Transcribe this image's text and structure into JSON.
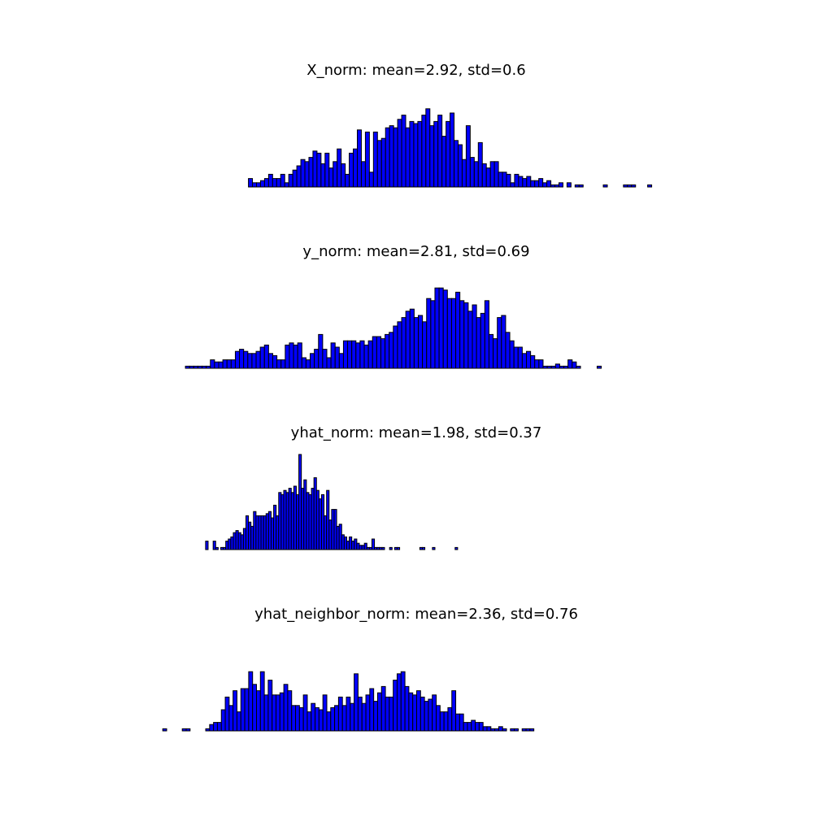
{
  "chart_data": [
    {
      "type": "histogram",
      "title": "X_norm: mean=2.92, std=0.6",
      "color": "#0000ff",
      "edgecolor": "#000000",
      "xlim": [
        0.335,
        5.335
      ],
      "ylim": [
        0,
        50
      ],
      "bins": [
        1.5,
        1.532,
        1.564,
        1.596,
        1.628,
        1.66,
        1.692,
        1.724,
        1.756,
        1.788,
        1.82,
        1.852,
        1.884,
        1.916,
        1.948,
        1.98,
        2.012,
        2.044,
        2.076,
        2.108,
        2.14,
        2.172,
        2.204,
        2.236,
        2.268,
        2.3,
        2.332,
        2.364,
        2.396,
        2.428,
        2.46,
        2.492,
        2.524,
        2.556,
        2.588,
        2.62,
        2.652,
        2.684,
        2.716,
        2.748,
        2.78,
        2.812,
        2.844,
        2.876,
        2.908,
        2.94,
        2.972,
        3.004,
        3.036,
        3.068,
        3.1,
        3.132,
        3.164,
        3.196,
        3.228,
        3.26,
        3.292,
        3.324,
        3.356,
        3.388,
        3.42,
        3.452,
        3.484,
        3.516,
        3.548,
        3.58,
        3.612,
        3.644,
        3.676,
        3.708,
        3.74,
        3.772,
        3.804,
        3.836,
        3.868,
        3.9,
        3.932,
        3.964,
        3.996,
        4.028,
        4.06,
        4.092,
        4.124,
        4.156,
        4.188,
        4.22,
        4.252,
        4.284,
        4.316,
        4.348,
        4.38,
        4.412,
        4.444,
        4.476,
        4.508,
        4.54,
        4.572,
        4.604,
        4.636,
        4.668,
        4.7
      ],
      "values": [
        4,
        2,
        2,
        3,
        4,
        6,
        4,
        4,
        6,
        2,
        6,
        8,
        10,
        13,
        12,
        14,
        17,
        16,
        11,
        16,
        9,
        12,
        18,
        11,
        6,
        16,
        18,
        27,
        12,
        26,
        7,
        26,
        22,
        23,
        28,
        29,
        28,
        32,
        34,
        28,
        31,
        30,
        31,
        34,
        37,
        29,
        31,
        34,
        24,
        31,
        35,
        22,
        20,
        13,
        29,
        14,
        12,
        21,
        11,
        9,
        12,
        12,
        7,
        7,
        6,
        2,
        6,
        5,
        4,
        5,
        3,
        3,
        4,
        2,
        3,
        1,
        1,
        2,
        0,
        2,
        0,
        1,
        1,
        0,
        0,
        0,
        0,
        0,
        1,
        0,
        0,
        0,
        0,
        1,
        1,
        1,
        0,
        0,
        0,
        1
      ]
    },
    {
      "type": "histogram",
      "title": "y_norm: mean=2.81, std=0.69",
      "color": "#0000ff",
      "edgecolor": "#000000",
      "xlim": [
        0.335,
        5.335
      ],
      "ylim": [
        0,
        50
      ],
      "bins": [
        1,
        1.033,
        1.066,
        1.099,
        1.132,
        1.165,
        1.198,
        1.231,
        1.264,
        1.297,
        1.33,
        1.363,
        1.396,
        1.429,
        1.462,
        1.495,
        1.528,
        1.561,
        1.594,
        1.627,
        1.66,
        1.693,
        1.726,
        1.759,
        1.792,
        1.825,
        1.858,
        1.891,
        1.924,
        1.957,
        1.99,
        2.023,
        2.056,
        2.089,
        2.122,
        2.155,
        2.188,
        2.221,
        2.254,
        2.287,
        2.32,
        2.353,
        2.386,
        2.419,
        2.452,
        2.485,
        2.518,
        2.551,
        2.584,
        2.617,
        2.65,
        2.683,
        2.716,
        2.749,
        2.782,
        2.815,
        2.848,
        2.881,
        2.914,
        2.947,
        2.98,
        3.013,
        3.046,
        3.079,
        3.112,
        3.145,
        3.178,
        3.211,
        3.244,
        3.277,
        3.31,
        3.343,
        3.376,
        3.409,
        3.442,
        3.475,
        3.508,
        3.541,
        3.574,
        3.607,
        3.64,
        3.673,
        3.706,
        3.739,
        3.772,
        3.805,
        3.838,
        3.871,
        3.904,
        3.937,
        3.97,
        4.003,
        4.036,
        4.069,
        4.102,
        4.135,
        4.168,
        4.201,
        4.234,
        4.267,
        4.3
      ],
      "values": [
        1,
        1,
        1,
        1,
        1,
        1,
        4,
        3,
        3,
        4,
        4,
        4,
        8,
        9,
        8,
        7,
        7,
        8,
        10,
        11,
        7,
        6,
        4,
        4,
        11,
        12,
        11,
        12,
        5,
        4,
        7,
        9,
        16,
        9,
        5,
        12,
        10,
        7,
        13,
        13,
        13,
        12,
        13,
        11,
        13,
        15,
        15,
        14,
        16,
        17,
        20,
        22,
        24,
        27,
        28,
        24,
        25,
        22,
        33,
        32,
        38,
        38,
        37,
        33,
        33,
        36,
        32,
        31,
        27,
        30,
        24,
        26,
        32,
        16,
        14,
        24,
        25,
        17,
        13,
        10,
        10,
        7,
        8,
        6,
        4,
        4,
        1,
        1,
        1,
        2,
        1,
        1,
        4,
        3,
        1,
        0,
        0,
        0,
        0,
        1
      ]
    },
    {
      "type": "histogram",
      "title": "yhat_norm: mean=1.98, std=0.37",
      "color": "#0000ff",
      "edgecolor": "#000000",
      "xlim": [
        0.335,
        5.335
      ],
      "ylim": [
        0,
        50
      ],
      "bins": [
        1.16,
        1.18,
        1.2,
        1.22,
        1.24,
        1.26,
        1.28,
        1.3,
        1.32,
        1.34,
        1.36,
        1.38,
        1.4,
        1.42,
        1.44,
        1.46,
        1.48,
        1.5,
        1.52,
        1.54,
        1.56,
        1.58,
        1.6,
        1.62,
        1.64,
        1.66,
        1.68,
        1.7,
        1.72,
        1.74,
        1.76,
        1.78,
        1.8,
        1.82,
        1.84,
        1.86,
        1.88,
        1.9,
        1.92,
        1.94,
        1.96,
        1.98,
        2,
        2.02,
        2.04,
        2.06,
        2.08,
        2.1,
        2.12,
        2.14,
        2.16,
        2.18,
        2.2,
        2.22,
        2.24,
        2.26,
        2.28,
        2.3,
        2.32,
        2.34,
        2.36,
        2.38,
        2.4,
        2.42,
        2.44,
        2.46,
        2.48,
        2.5,
        2.52,
        2.54,
        2.56,
        2.58,
        2.6,
        2.62,
        2.64,
        2.66,
        2.68,
        2.7,
        2.72,
        2.74,
        2.76,
        2.78,
        2.8,
        2.82,
        2.84,
        2.86,
        2.88,
        2.9,
        2.92,
        2.94,
        2.96,
        2.98,
        3,
        3.02,
        3.04,
        3.06,
        3.08,
        3.1,
        3.12,
        3.14,
        3.16
      ],
      "values": [
        4,
        0,
        0,
        4,
        1,
        0,
        1,
        1,
        4,
        5,
        6,
        8,
        9,
        8,
        7,
        10,
        16,
        13,
        11,
        18,
        16,
        16,
        16,
        16,
        17,
        18,
        15,
        21,
        16,
        27,
        26,
        28,
        27,
        29,
        27,
        30,
        26,
        45,
        29,
        33,
        27,
        26,
        29,
        34,
        28,
        24,
        26,
        16,
        28,
        14,
        19,
        19,
        11,
        12,
        7,
        6,
        4,
        6,
        4,
        5,
        3,
        2,
        2,
        3,
        1,
        1,
        5,
        1,
        1,
        1,
        1,
        0,
        0,
        1,
        0,
        1,
        1,
        0,
        0,
        0,
        0,
        0,
        0,
        0,
        0,
        1,
        1,
        0,
        0,
        0,
        1,
        0,
        0,
        0,
        0,
        0,
        0,
        0,
        0,
        1
      ]
    },
    {
      "type": "histogram",
      "title": "yhat_neighbor_norm: mean=2.36, std=0.76",
      "color": "#0000ff",
      "edgecolor": "#000000",
      "xlim": [
        0.335,
        5.335
      ],
      "ylim": [
        0,
        50
      ],
      "bins": [
        0.82,
        0.851,
        0.882,
        0.913,
        0.944,
        0.975,
        1.006,
        1.037,
        1.068,
        1.099,
        1.13,
        1.161,
        1.192,
        1.223,
        1.254,
        1.285,
        1.316,
        1.347,
        1.378,
        1.409,
        1.44,
        1.471,
        1.502,
        1.533,
        1.564,
        1.595,
        1.626,
        1.657,
        1.688,
        1.719,
        1.75,
        1.781,
        1.812,
        1.843,
        1.874,
        1.905,
        1.936,
        1.967,
        1.998,
        2.029,
        2.06,
        2.091,
        2.122,
        2.153,
        2.184,
        2.215,
        2.246,
        2.277,
        2.308,
        2.339,
        2.37,
        2.401,
        2.432,
        2.463,
        2.494,
        2.525,
        2.556,
        2.587,
        2.618,
        2.649,
        2.68,
        2.711,
        2.742,
        2.773,
        2.804,
        2.835,
        2.866,
        2.897,
        2.928,
        2.959,
        2.99,
        3.021,
        3.052,
        3.083,
        3.114,
        3.145,
        3.176,
        3.207,
        3.238,
        3.269,
        3.3,
        3.331,
        3.362,
        3.393,
        3.424,
        3.455,
        3.486,
        3.517,
        3.548,
        3.579,
        3.61,
        3.641,
        3.672,
        3.703,
        3.734,
        3.765,
        3.796,
        3.827,
        3.858,
        3.889,
        3.92
      ],
      "values": [
        1,
        0,
        0,
        0,
        0,
        1,
        1,
        0,
        0,
        0,
        0,
        1,
        3,
        4,
        4,
        10,
        16,
        12,
        19,
        9,
        20,
        20,
        28,
        22,
        19,
        28,
        17,
        24,
        17,
        17,
        18,
        22,
        19,
        12,
        12,
        11,
        17,
        9,
        13,
        11,
        10,
        17,
        9,
        11,
        12,
        16,
        12,
        16,
        13,
        27,
        16,
        13,
        17,
        20,
        14,
        18,
        21,
        16,
        16,
        24,
        27,
        28,
        21,
        18,
        17,
        19,
        16,
        14,
        15,
        17,
        12,
        9,
        9,
        11,
        19,
        8,
        8,
        4,
        4,
        5,
        4,
        4,
        2,
        2,
        1,
        1,
        2,
        1,
        0,
        1,
        1,
        0,
        1,
        1,
        1,
        0,
        0,
        0,
        0,
        0
      ]
    }
  ]
}
